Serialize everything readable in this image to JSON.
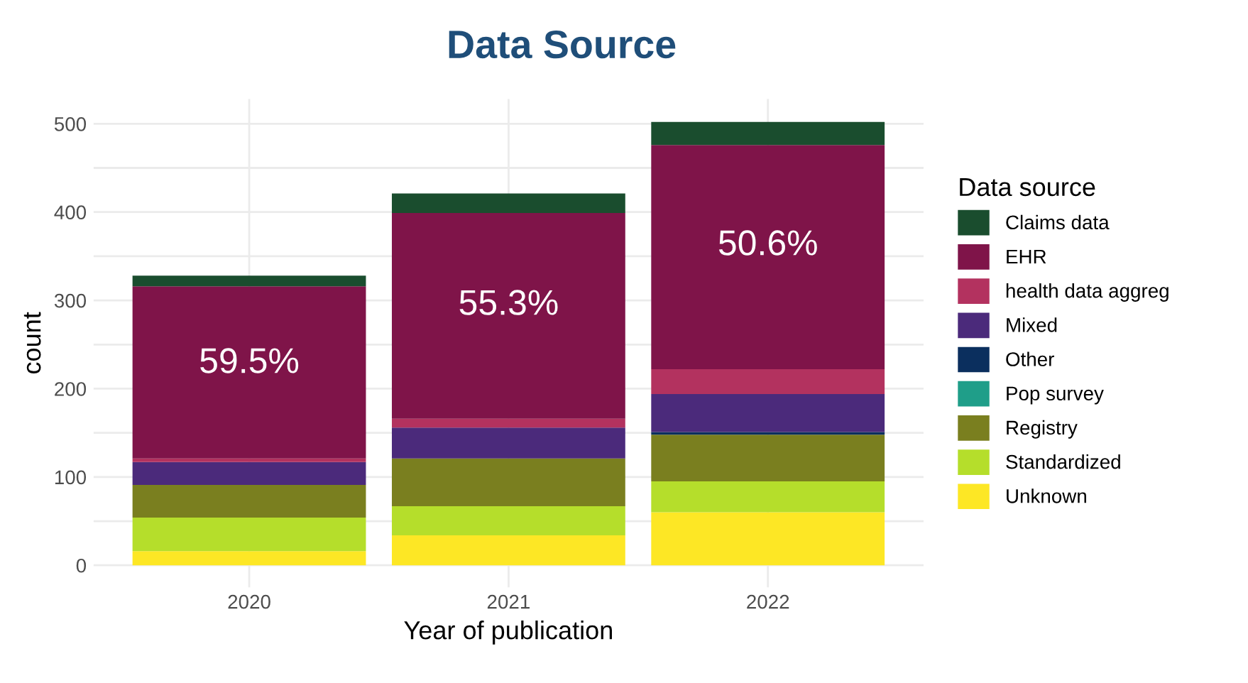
{
  "chart_data": {
    "type": "bar",
    "title": "Data Source",
    "xlabel": "Year of publication",
    "ylabel": "count",
    "legend_title": "Data source",
    "categories": [
      "2020",
      "2021",
      "2022"
    ],
    "stacked": true,
    "series": [
      {
        "name": "Unknown",
        "color": "#fde725",
        "values": [
          16,
          34,
          60
        ]
      },
      {
        "name": "Standardized",
        "color": "#b5de2b",
        "values": [
          38,
          33,
          35
        ]
      },
      {
        "name": "Registry",
        "color": "#7a7f1f",
        "values": [
          37,
          54,
          53
        ]
      },
      {
        "name": "Pop survey",
        "color": "#1f9e89",
        "values": [
          0,
          0,
          0
        ]
      },
      {
        "name": "Other",
        "color": "#0b2f5e",
        "values": [
          0,
          0,
          3
        ]
      },
      {
        "name": "Mixed",
        "color": "#4b2a7b",
        "values": [
          26,
          35,
          43
        ]
      },
      {
        "name": "health data aggreg",
        "color": "#b3325f",
        "values": [
          4,
          10,
          28
        ]
      },
      {
        "name": "EHR",
        "color": "#7f1449",
        "values": [
          195,
          233,
          254
        ]
      },
      {
        "name": "Claims data",
        "color": "#1a4d2e",
        "values": [
          12,
          22,
          26
        ]
      }
    ],
    "annotations": [
      "59.5%",
      "55.3%",
      "50.6%"
    ],
    "ylim": [
      -25,
      528
    ],
    "yticks": [
      0,
      {
        "value": 50,
        "label": null
      },
      100,
      {
        "value": 150,
        "label": null
      },
      200,
      {
        "value": 250,
        "label": null
      },
      300,
      {
        "value": 350,
        "label": null
      },
      400,
      {
        "value": 450,
        "label": null
      },
      500
    ],
    "grid": true,
    "legend": "right"
  }
}
